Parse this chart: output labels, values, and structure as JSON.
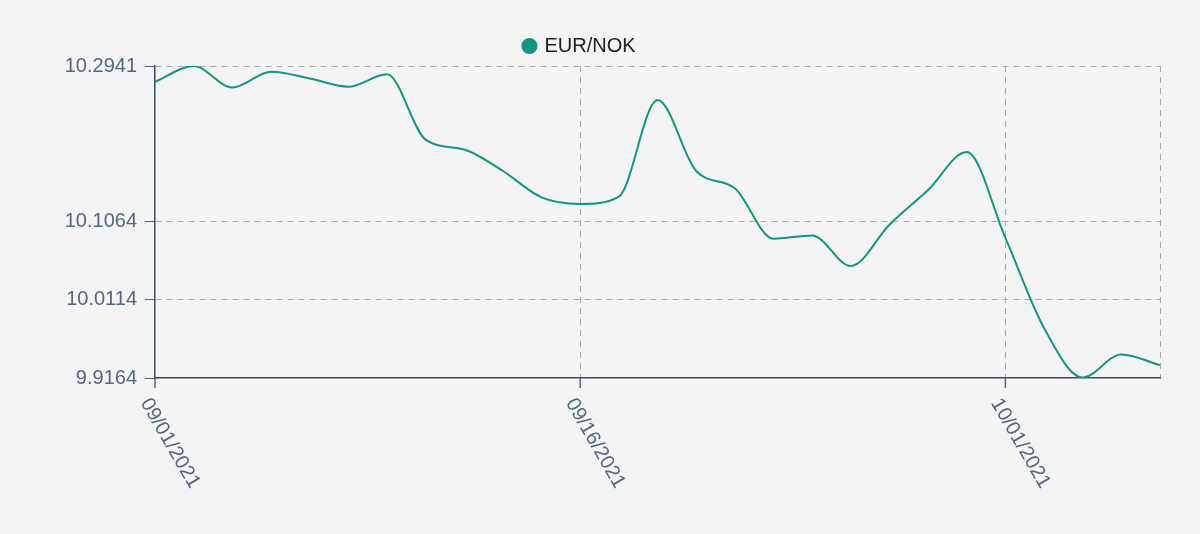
{
  "chart_data": {
    "type": "line",
    "categories": [
      "09/01/2021",
      null,
      null,
      null,
      null,
      null,
      null,
      null,
      null,
      null,
      null,
      "09/16/2021",
      null,
      null,
      null,
      null,
      null,
      null,
      null,
      null,
      null,
      null,
      "10/01/2021",
      null,
      null,
      null,
      null
    ],
    "series": [
      {
        "name": "EUR/NOK",
        "color": "#15957f",
        "values": [
          10.275,
          10.294,
          10.268,
          10.287,
          10.279,
          10.269,
          10.284,
          10.205,
          10.193,
          10.167,
          10.135,
          10.127,
          10.136,
          10.253,
          10.167,
          10.146,
          10.085,
          10.089,
          10.052,
          10.102,
          10.144,
          10.19,
          10.086,
          9.977,
          9.917,
          9.945,
          9.932
        ]
      }
    ],
    "ylim": [
      9.9164,
      10.2941
    ],
    "yticks": [
      9.9164,
      10.0114,
      10.1064,
      10.2941
    ],
    "grid": true,
    "legend": "top"
  }
}
